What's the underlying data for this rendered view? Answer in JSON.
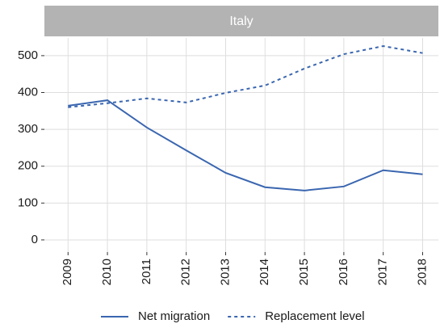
{
  "chart_data": {
    "type": "line",
    "title": "Italy",
    "x": [
      2009,
      2010,
      2011,
      2012,
      2013,
      2014,
      2015,
      2016,
      2017,
      2018
    ],
    "series": [
      {
        "name": "Net migration",
        "color": "#3a66b0",
        "dash": "solid",
        "values": [
          364,
          379,
          305,
          243,
          182,
          143,
          134,
          145,
          189,
          178
        ]
      },
      {
        "name": "Replacement level",
        "color": "#3a66b0",
        "dash": "dashed",
        "values": [
          360,
          371,
          384,
          373,
          399,
          419,
          465,
          504,
          526,
          507
        ]
      }
    ],
    "xlim": [
      2008.4,
      2018.4
    ],
    "xticks": [
      2009,
      2010,
      2011,
      2012,
      2013,
      2014,
      2015,
      2016,
      2017,
      2018
    ],
    "ylim": [
      -33,
      548
    ],
    "yticks": [
      0,
      100,
      200,
      300,
      400,
      500
    ],
    "grid": true,
    "legend": "bottom"
  }
}
